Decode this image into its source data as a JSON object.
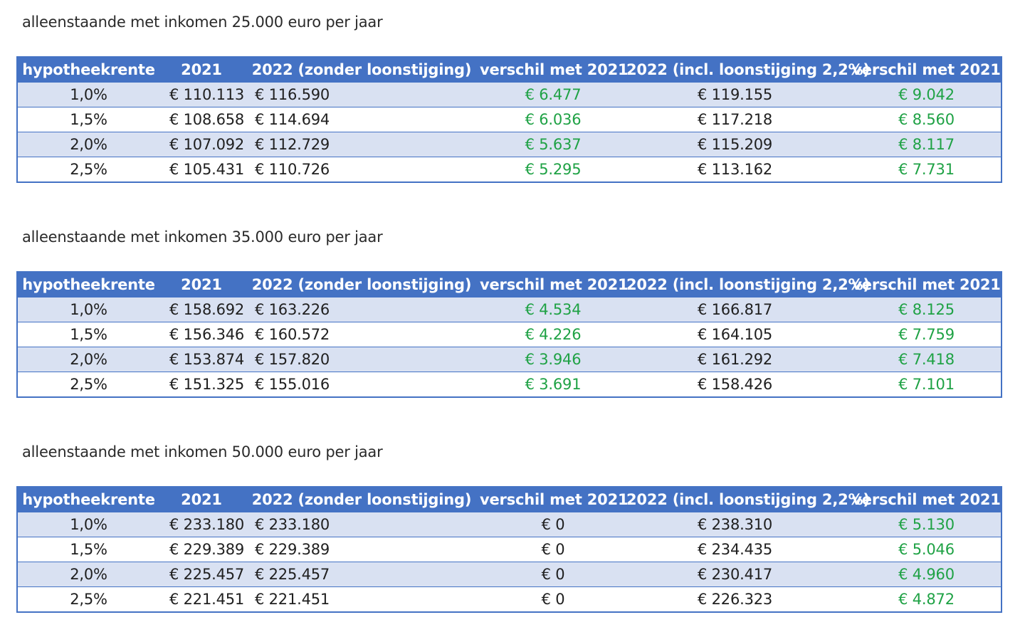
{
  "columns": [
    "hypotheekrente",
    "2021",
    "2022 (zonder loonstijging)",
    "verschil met 2021",
    "2022 (incl. loonstijging 2,2%)",
    "verschil met 2021"
  ],
  "colors": {
    "header_bg": "#4472c4",
    "stripe_bg": "#d9e1f2",
    "positive_text": "#1fa245"
  },
  "tables": [
    {
      "caption": "alleenstaande met inkomen 25.000 euro per jaar",
      "rows": [
        {
          "rate": "1,0%",
          "y2021": "€ 110.113",
          "y2022": "€ 116.590",
          "diff1": "€ 6.477",
          "diff1_green": true,
          "y2022b": "€ 119.155",
          "diff2": "€ 9.042"
        },
        {
          "rate": "1,5%",
          "y2021": "€ 108.658",
          "y2022": "€ 114.694",
          "diff1": "€ 6.036",
          "diff1_green": true,
          "y2022b": "€ 117.218",
          "diff2": "€ 8.560"
        },
        {
          "rate": "2,0%",
          "y2021": "€ 107.092",
          "y2022": "€ 112.729",
          "diff1": "€ 5.637",
          "diff1_green": true,
          "y2022b": "€ 115.209",
          "diff2": "€ 8.117"
        },
        {
          "rate": "2,5%",
          "y2021": "€ 105.431",
          "y2022": "€ 110.726",
          "diff1": "€ 5.295",
          "diff1_green": true,
          "y2022b": "€ 113.162",
          "diff2": "€ 7.731"
        }
      ]
    },
    {
      "caption": "alleenstaande met inkomen 35.000 euro per jaar",
      "rows": [
        {
          "rate": "1,0%",
          "y2021": "€ 158.692",
          "y2022": "€ 163.226",
          "diff1": "€ 4.534",
          "diff1_green": true,
          "y2022b": "€ 166.817",
          "diff2": "€ 8.125"
        },
        {
          "rate": "1,5%",
          "y2021": "€ 156.346",
          "y2022": "€ 160.572",
          "diff1": "€ 4.226",
          "diff1_green": true,
          "y2022b": "€ 164.105",
          "diff2": "€ 7.759"
        },
        {
          "rate": "2,0%",
          "y2021": "€ 153.874",
          "y2022": "€ 157.820",
          "diff1": "€ 3.946",
          "diff1_green": true,
          "y2022b": "€ 161.292",
          "diff2": "€ 7.418"
        },
        {
          "rate": "2,5%",
          "y2021": "€ 151.325",
          "y2022": "€ 155.016",
          "diff1": "€ 3.691",
          "diff1_green": true,
          "y2022b": "€ 158.426",
          "diff2": "€ 7.101"
        }
      ]
    },
    {
      "caption": "alleenstaande met inkomen 50.000 euro per jaar",
      "rows": [
        {
          "rate": "1,0%",
          "y2021": "€ 233.180",
          "y2022": "€ 233.180",
          "diff1": "€ 0",
          "diff1_green": false,
          "y2022b": "€ 238.310",
          "diff2": "€ 5.130"
        },
        {
          "rate": "1,5%",
          "y2021": "€ 229.389",
          "y2022": "€ 229.389",
          "diff1": "€ 0",
          "diff1_green": false,
          "y2022b": "€ 234.435",
          "diff2": "€ 5.046"
        },
        {
          "rate": "2,0%",
          "y2021": "€ 225.457",
          "y2022": "€ 225.457",
          "diff1": "€ 0",
          "diff1_green": false,
          "y2022b": "€ 230.417",
          "diff2": "€ 4.960"
        },
        {
          "rate": "2,5%",
          "y2021": "€ 221.451",
          "y2022": "€ 221.451",
          "diff1": "€ 0",
          "diff1_green": false,
          "y2022b": "€ 226.323",
          "diff2": "€ 4.872"
        }
      ]
    }
  ]
}
